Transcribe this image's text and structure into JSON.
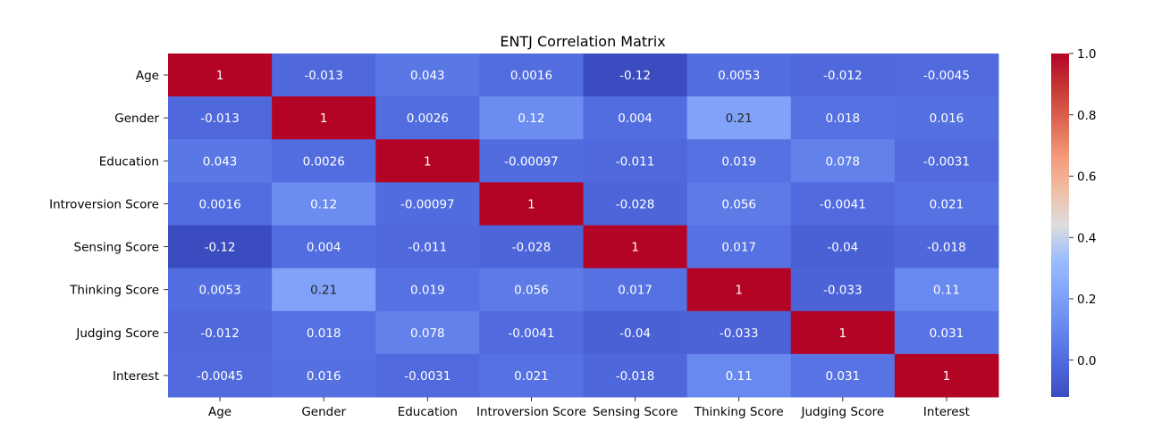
{
  "chart_data": {
    "type": "heatmap",
    "title": "ENTJ Correlation Matrix",
    "xlabel": "",
    "ylabel": "",
    "labels": [
      "Age",
      "Gender",
      "Education",
      "Introversion Score",
      "Sensing Score",
      "Thinking Score",
      "Judging Score",
      "Interest"
    ],
    "values": [
      [
        "1",
        "-0.013",
        "0.043",
        "0.0016",
        "-0.12",
        "0.0053",
        "-0.012",
        "-0.0045"
      ],
      [
        "-0.013",
        "1",
        "0.0026",
        "0.12",
        "0.004",
        "0.21",
        "0.018",
        "0.016"
      ],
      [
        "0.043",
        "0.0026",
        "1",
        "-0.00097",
        "-0.011",
        "0.019",
        "0.078",
        "-0.0031"
      ],
      [
        "0.0016",
        "0.12",
        "-0.00097",
        "1",
        "-0.028",
        "0.056",
        "-0.0041",
        "0.021"
      ],
      [
        "-0.12",
        "0.004",
        "-0.011",
        "-0.028",
        "1",
        "0.017",
        "-0.04",
        "-0.018"
      ],
      [
        "0.0053",
        "0.21",
        "0.019",
        "0.056",
        "0.017",
        "1",
        "-0.033",
        "0.11"
      ],
      [
        "-0.012",
        "0.018",
        "0.078",
        "-0.0041",
        "-0.04",
        "-0.033",
        "1",
        "0.031"
      ],
      [
        "-0.0045",
        "0.016",
        "-0.0031",
        "0.021",
        "-0.018",
        "0.11",
        "0.031",
        "1"
      ]
    ],
    "colormap": "coolwarm",
    "vmin": -0.12,
    "vmax": 1.0,
    "colorbar_ticks": [
      "0.0",
      "0.2",
      "0.4",
      "0.6",
      "0.8",
      "1.0"
    ],
    "colors": {
      "low": "#3b4cc0",
      "mid": "#dddddd",
      "high": "#b40426",
      "text_dark": "#262626",
      "text_light": "#ffffff"
    }
  }
}
